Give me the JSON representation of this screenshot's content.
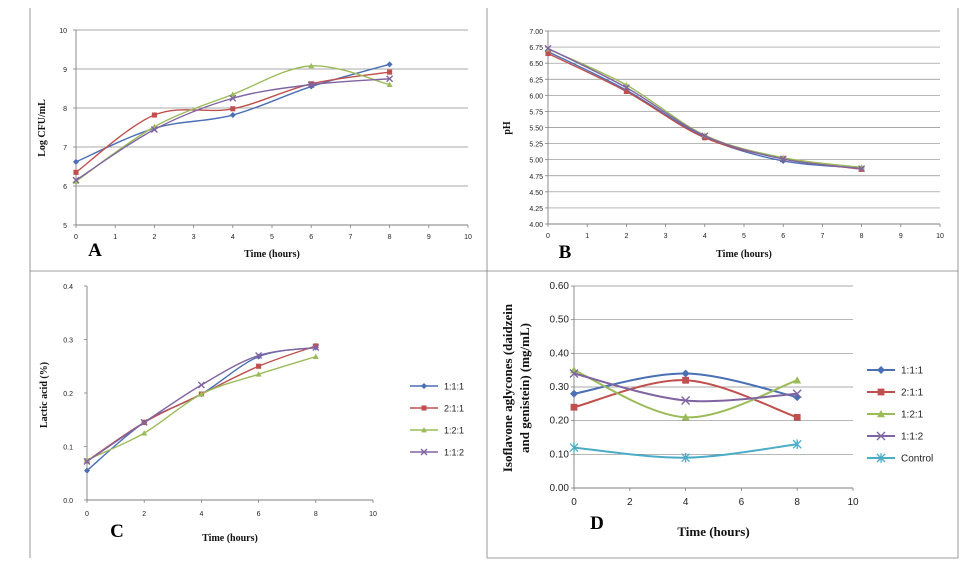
{
  "chart_data": [
    {
      "panel": "A",
      "type": "line",
      "xlabel": "Time (hours)",
      "ylabel": "Log CFU/mL",
      "xlim": [
        0,
        10
      ],
      "ylim": [
        5,
        10
      ],
      "xticks": [
        "0",
        "1",
        "2",
        "3",
        "4",
        "5",
        "6",
        "7",
        "8",
        "9",
        "10"
      ],
      "yticks": [
        "5",
        "6",
        "7",
        "8",
        "9",
        "10"
      ],
      "grid": true,
      "legend": "none",
      "x": [
        0,
        2,
        4,
        6,
        8
      ],
      "series": [
        {
          "color": "#4a6fb5",
          "marker": "diamond",
          "values": [
            6.62,
            7.48,
            7.82,
            8.55,
            9.12
          ]
        },
        {
          "color": "#c0504d",
          "marker": "square",
          "values": [
            6.35,
            7.82,
            7.98,
            8.62,
            8.92
          ]
        },
        {
          "color": "#9bbb59",
          "marker": "triangle",
          "values": [
            6.12,
            7.52,
            8.35,
            9.08,
            8.6
          ]
        },
        {
          "color": "#8064a2",
          "marker": "x",
          "values": [
            6.15,
            7.45,
            8.25,
            8.6,
            8.75
          ]
        }
      ]
    },
    {
      "panel": "B",
      "type": "line",
      "xlabel": "Time (hours)",
      "ylabel": "pH",
      "xlim": [
        0,
        10
      ],
      "ylim": [
        4,
        7
      ],
      "xticks": [
        "0",
        "1",
        "2",
        "3",
        "4",
        "5",
        "6",
        "7",
        "8",
        "9",
        "10"
      ],
      "yticks": [
        "4.00",
        "4.25",
        "4.50",
        "4.75",
        "5.00",
        "5.25",
        "5.50",
        "5.75",
        "6.00",
        "6.25",
        "6.50",
        "6.75",
        "7.00"
      ],
      "grid": true,
      "legend": "none",
      "x": [
        0,
        2,
        4,
        6,
        8
      ],
      "series": [
        {
          "color": "#4a6fb5",
          "marker": "diamond",
          "values": [
            6.68,
            6.08,
            5.35,
            4.98,
            4.87
          ]
        },
        {
          "color": "#c0504d",
          "marker": "square",
          "values": [
            6.65,
            6.06,
            5.34,
            5.02,
            4.85
          ]
        },
        {
          "color": "#9bbb59",
          "marker": "triangle",
          "values": [
            6.72,
            6.16,
            5.38,
            5.03,
            4.88
          ]
        },
        {
          "color": "#8064a2",
          "marker": "x",
          "values": [
            6.73,
            6.12,
            5.37,
            5.01,
            4.86
          ]
        }
      ]
    },
    {
      "panel": "C",
      "type": "line",
      "xlabel": "Time (hours)",
      "ylabel": "Lactic acid (%)",
      "xlim": [
        0,
        10
      ],
      "ylim": [
        0,
        0.4
      ],
      "xticks": [
        "0",
        "2",
        "4",
        "6",
        "8",
        "10"
      ],
      "yticks": [
        "0.0",
        "0.1",
        "0.2",
        "0.3",
        "0.4"
      ],
      "grid": false,
      "legend": "right",
      "x": [
        0,
        2,
        4,
        6,
        8
      ],
      "series": [
        {
          "name": "1:1:1",
          "color": "#4a6fb5",
          "marker": "diamond",
          "values": [
            0.055,
            0.145,
            0.198,
            0.268,
            0.285
          ]
        },
        {
          "name": "2:1:1",
          "color": "#c0504d",
          "marker": "square",
          "values": [
            0.073,
            0.145,
            0.198,
            0.25,
            0.288
          ]
        },
        {
          "name": "1:2:1",
          "color": "#9bbb59",
          "marker": "triangle",
          "values": [
            0.075,
            0.125,
            0.198,
            0.235,
            0.268
          ]
        },
        {
          "name": "1:1:2",
          "color": "#8064a2",
          "marker": "x",
          "values": [
            0.072,
            0.145,
            0.215,
            0.27,
            0.285
          ]
        }
      ]
    },
    {
      "panel": "D",
      "type": "line",
      "xlabel": "Time (hours)",
      "ylabel": "Isoflavone aglycones (daidzein and genistein) (mg/mL)",
      "xlim": [
        0,
        10
      ],
      "ylim": [
        0,
        0.6
      ],
      "xticks": [
        "0",
        "2",
        "4",
        "6",
        "8",
        "10"
      ],
      "yticks": [
        "0.00",
        "0.10",
        "0.20",
        "0.30",
        "0.40",
        "0.50",
        "0.60"
      ],
      "grid": true,
      "legend": "right",
      "x": [
        0,
        4,
        8
      ],
      "series": [
        {
          "name": "1:1:1",
          "color": "#4a6fb5",
          "marker": "diamond",
          "values": [
            0.28,
            0.34,
            0.27
          ]
        },
        {
          "name": "2:1:1",
          "color": "#c0504d",
          "marker": "square",
          "values": [
            0.24,
            0.32,
            0.21
          ]
        },
        {
          "name": "1:2:1",
          "color": "#9bbb59",
          "marker": "triangle",
          "values": [
            0.35,
            0.21,
            0.32
          ]
        },
        {
          "name": "1:1:2",
          "color": "#8064a2",
          "marker": "x",
          "values": [
            0.34,
            0.26,
            0.28
          ]
        },
        {
          "name": "Control",
          "color": "#4bacc6",
          "marker": "star",
          "values": [
            0.12,
            0.09,
            0.13
          ]
        }
      ]
    }
  ]
}
